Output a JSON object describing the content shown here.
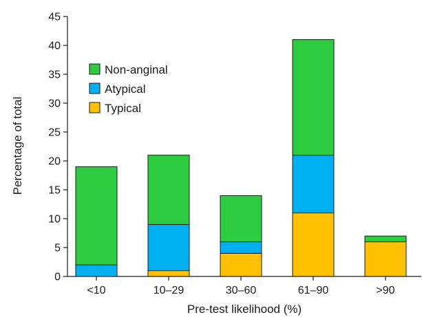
{
  "chart_data": {
    "type": "bar",
    "stacked": true,
    "xlabel": "Pre-test likelihood (%)",
    "ylabel": "Percentage of total",
    "ylim": [
      0,
      45
    ],
    "yticks": [
      0,
      5,
      10,
      15,
      20,
      25,
      30,
      35,
      40,
      45
    ],
    "grid": false,
    "legend_position": "top-left",
    "categories": [
      "<10",
      "10–29",
      "30–60",
      "61–90",
      ">90"
    ],
    "series": [
      {
        "name": "Typical",
        "color": "#FFC000",
        "values": [
          0,
          1,
          4,
          11,
          6
        ]
      },
      {
        "name": "Atypical",
        "color": "#00B0F0",
        "values": [
          2,
          8,
          2,
          10,
          0
        ]
      },
      {
        "name": "Non-anginal",
        "color": "#2ECC40",
        "values": [
          17,
          12,
          8,
          20,
          1
        ]
      }
    ],
    "legend_order": [
      "Non-anginal",
      "Atypical",
      "Typical"
    ]
  }
}
